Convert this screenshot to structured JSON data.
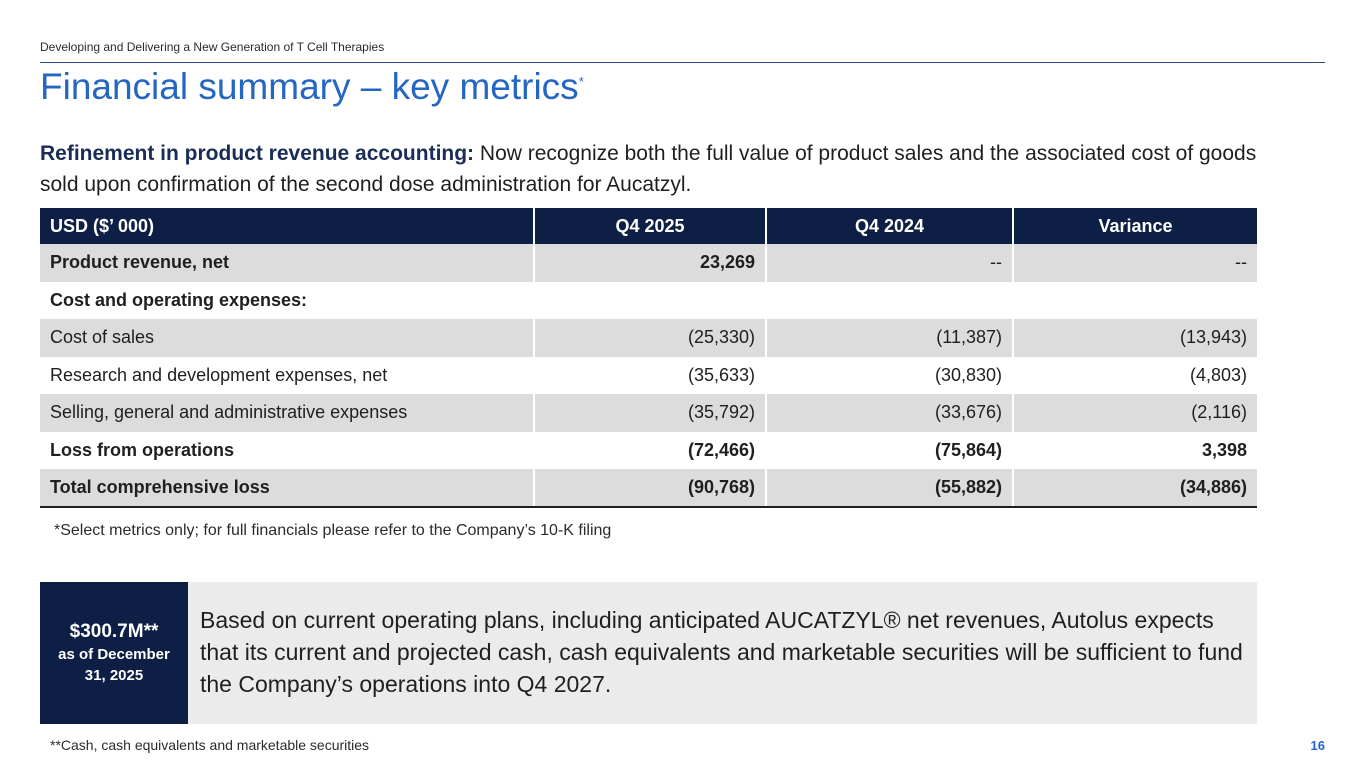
{
  "header": {
    "tagline": "Developing and Delivering a New Generation of T Cell Therapies",
    "title": "Financial summary – key metrics",
    "title_mark": "*"
  },
  "intro": {
    "lead": "Refinement in product revenue accounting:",
    "text": " Now recognize both the full value of product sales and the associated cost of goods sold upon confirmation of the second dose administration for Aucatzyl."
  },
  "table": {
    "headers": [
      "USD ($’ 000)",
      "Q4 2025",
      "Q4 2024",
      "Variance"
    ],
    "rows": [
      [
        "Product revenue, net",
        "23,269",
        "--",
        "--"
      ],
      [
        "Cost and operating expenses:",
        "",
        "",
        ""
      ],
      [
        "Cost of sales",
        "(25,330)",
        "(11,387)",
        "(13,943)"
      ],
      [
        "Research and development expenses, net",
        "(35,633)",
        "(30,830)",
        "(4,803)"
      ],
      [
        "Selling, general and administrative expenses",
        "(35,792)",
        "(33,676)",
        "(2,116)"
      ],
      [
        "Loss from operations",
        "(72,466)",
        "(75,864)",
        "3,398"
      ],
      [
        "Total comprehensive loss",
        "(90,768)",
        "(55,882)",
        "(34,886)"
      ]
    ]
  },
  "footnote_metrics": "*Select metrics only; for full financials please refer to the Company’s 10-K filing",
  "cash": {
    "amount": "$300.7M**",
    "label": "as of December 31, 2025"
  },
  "outlook": "Based on current operating plans, including anticipated AUCATZYL® net revenues, Autolus expects that its current and projected cash, cash equivalents and marketable securities will be sufficient to fund the Company’s operations into Q4 2027.",
  "footnote_cash": "**Cash, cash equivalents and marketable securities",
  "page_number": "16",
  "colors": {
    "navy": "#0d1f45",
    "title_blue": "#2466c4",
    "row_shade": "#dcdcdc",
    "panel_gray": "#ebebeb"
  }
}
